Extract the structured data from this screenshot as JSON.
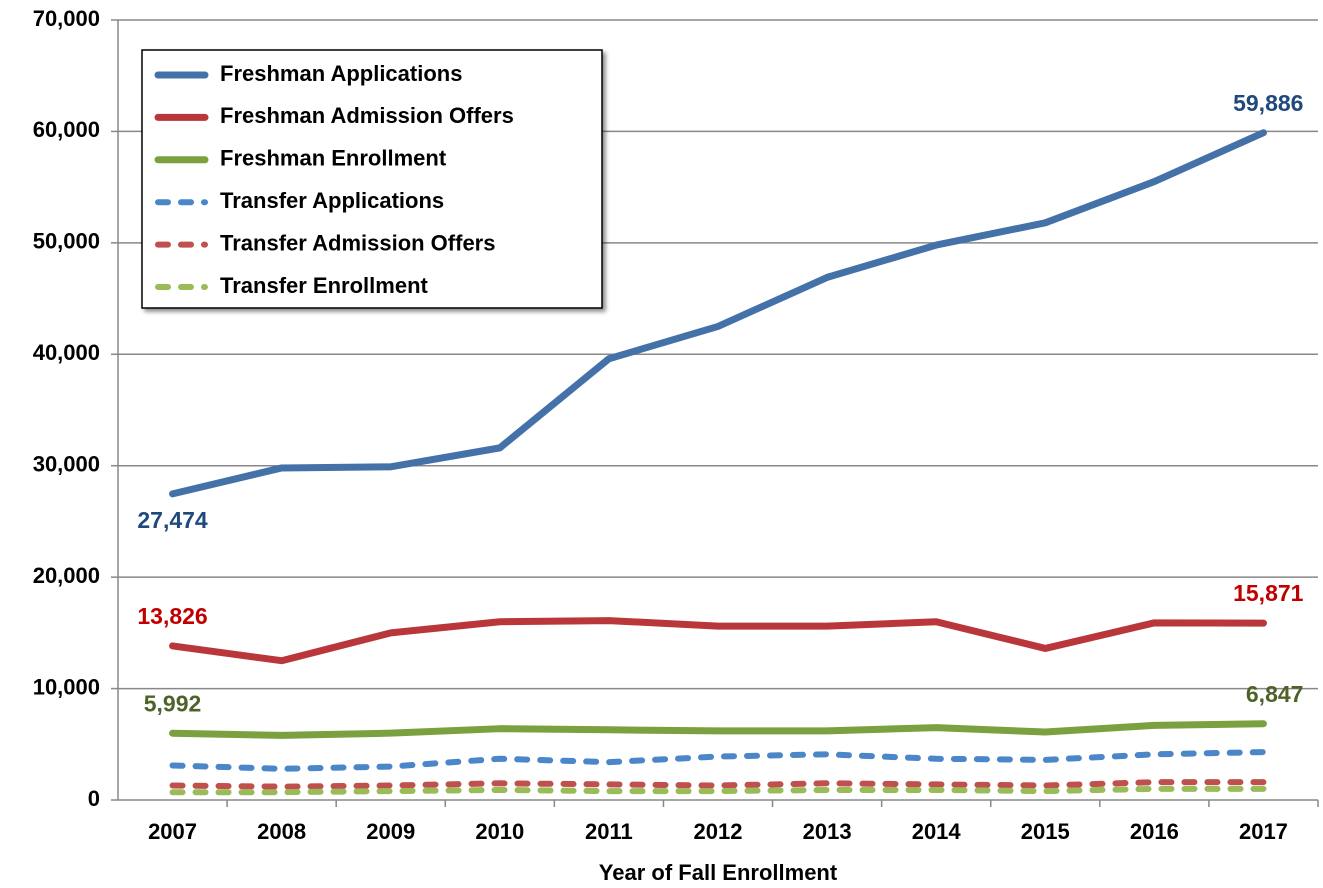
{
  "chart_data": {
    "type": "line",
    "x_label": "Year of Fall Enrollment",
    "categories": [
      "2007",
      "2008",
      "2009",
      "2010",
      "2011",
      "2012",
      "2013",
      "2014",
      "2015",
      "2016",
      "2017"
    ],
    "ylim": [
      0,
      70000
    ],
    "yticks": [
      0,
      {
        "value": 10000,
        "label": "10,000"
      },
      {
        "value": 20000,
        "label": "20,000"
      },
      {
        "value": 30000,
        "label": "30,000"
      },
      {
        "value": 40000,
        "label": "40,000"
      },
      {
        "value": 50000,
        "label": "50,000"
      },
      {
        "value": 60000,
        "label": "60,000"
      },
      {
        "value": 70000,
        "label": "70,000"
      }
    ],
    "grid": true,
    "legend": "upper left",
    "series": [
      {
        "name": "Freshman Applications",
        "color": "#4472a8",
        "dashed": false,
        "label_color": "#1f497d",
        "values": [
          27474,
          29800,
          29900,
          31600,
          39600,
          42500,
          46900,
          49800,
          51800,
          55500,
          59886
        ],
        "value_labels": [
          "27,474",
          null,
          null,
          null,
          null,
          null,
          null,
          null,
          null,
          null,
          "59,886"
        ]
      },
      {
        "name": "Freshman Admission Offers",
        "color": "#b9373a",
        "dashed": false,
        "label_color": "#c00000",
        "values": [
          13826,
          12500,
          15000,
          16000,
          16100,
          15600,
          15600,
          16000,
          13600,
          15900,
          15871
        ],
        "value_labels": [
          "13,826",
          null,
          null,
          null,
          null,
          null,
          null,
          null,
          null,
          null,
          "15,871"
        ]
      },
      {
        "name": "Freshman Enrollment",
        "color": "#7aa03f",
        "dashed": false,
        "label_color": "#4f6228",
        "values": [
          5992,
          5800,
          6000,
          6400,
          6300,
          6200,
          6200,
          6500,
          6100,
          6700,
          6847
        ],
        "value_labels": [
          "5,992",
          null,
          null,
          null,
          null,
          null,
          null,
          null,
          null,
          null,
          "6,847"
        ]
      },
      {
        "name": "Transfer Applications",
        "color": "#4a86c8",
        "dashed": true,
        "values": [
          3100,
          2800,
          3000,
          3700,
          3400,
          3900,
          4100,
          3700,
          3600,
          4100,
          4300
        ]
      },
      {
        "name": "Transfer Admission Offers",
        "color": "#c0504d",
        "dashed": true,
        "values": [
          1300,
          1200,
          1300,
          1500,
          1400,
          1300,
          1500,
          1400,
          1300,
          1600,
          1600
        ]
      },
      {
        "name": "Transfer Enrollment",
        "color": "#9bbb59",
        "dashed": true,
        "values": [
          700,
          700,
          800,
          900,
          800,
          800,
          900,
          900,
          800,
          1000,
          1000
        ]
      }
    ]
  }
}
